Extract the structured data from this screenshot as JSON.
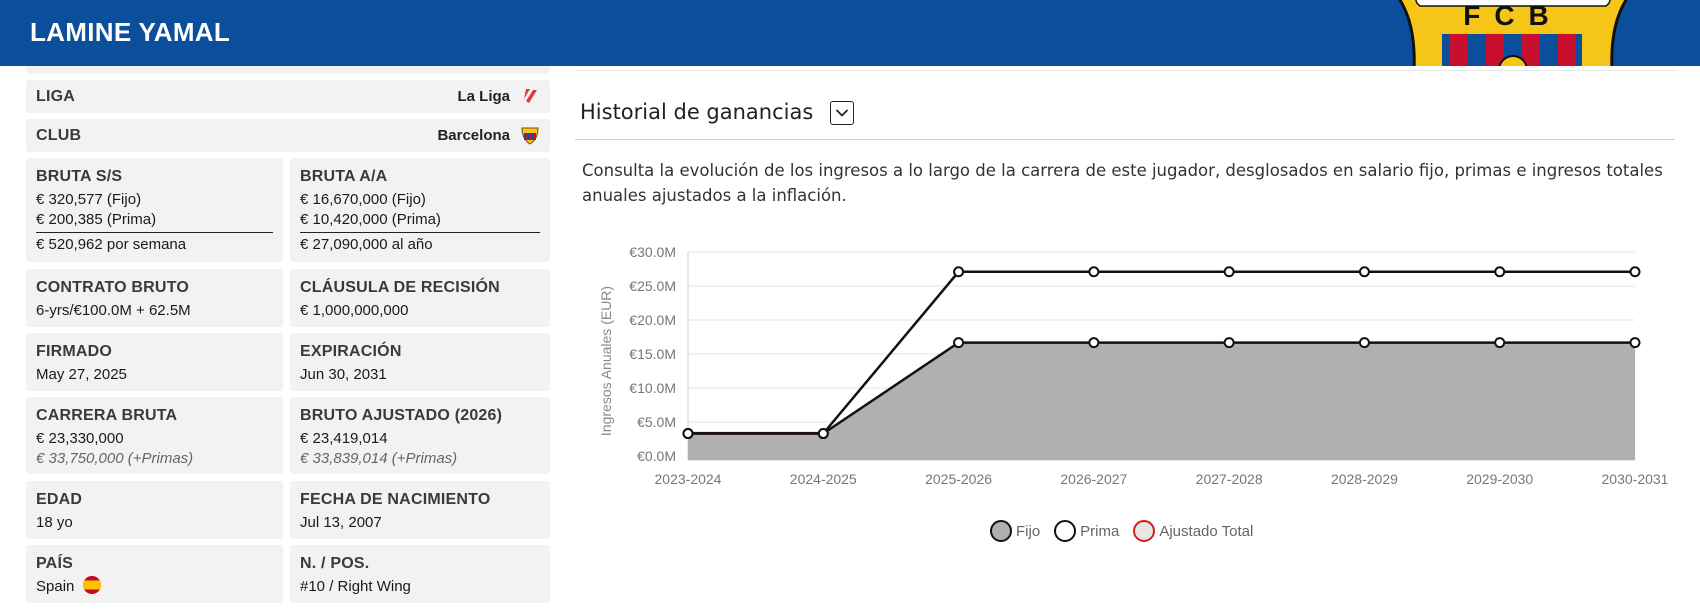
{
  "header": {
    "player_name": "LAMINE YAMAL",
    "crest_text": "FCB",
    "colors": {
      "header_bg": "#0b4f9c",
      "crest_gold": "#f5c518",
      "crest_red": "#c8102e",
      "crest_blue": "#0b4f9c"
    }
  },
  "stats": {
    "liga": {
      "label": "LIGA",
      "value": "La Liga",
      "icon": "laliga-logo-icon"
    },
    "club": {
      "label": "CLUB",
      "value": "Barcelona",
      "icon": "fcb-crest-icon"
    },
    "bruta_ss": {
      "label": "BRUTA S/S",
      "fijo": "€ 320,577 (Fijo)",
      "prima": "€ 200,385 (Prima)",
      "total": "€ 520,962 por semana"
    },
    "bruta_aa": {
      "label": "BRUTA A/A",
      "fijo": "€ 16,670,000 (Fijo)",
      "prima": "€ 10,420,000 (Prima)",
      "total": "€ 27,090,000 al año"
    },
    "contrato": {
      "label": "CONTRATO BRUTO",
      "value": "6-yrs/€100.0M + 62.5M"
    },
    "clausula": {
      "label": "CLÁUSULA DE RECISIÓN",
      "value": "€ 1,000,000,000"
    },
    "firmado": {
      "label": "FIRMADO",
      "value": "May 27, 2025"
    },
    "expiracion": {
      "label": "EXPIRACIÓN",
      "value": "Jun 30, 2031"
    },
    "carrera": {
      "label": "CARRERA BRUTA",
      "value": "€ 23,330,000",
      "sub": "€ 33,750,000 (+Primas)"
    },
    "ajustado": {
      "label": "BRUTO AJUSTADO (2026)",
      "value": "€ 23,419,014",
      "sub": "€ 33,839,014 (+Primas)"
    },
    "edad": {
      "label": "EDAD",
      "value": "18 yo"
    },
    "nacimiento": {
      "label": "FECHA DE NACIMIENTO",
      "value": "Jul 13, 2007"
    },
    "pais": {
      "label": "PAÍS",
      "value": "Spain",
      "icon": "spain-flag-icon"
    },
    "posicion": {
      "label": "N. / POS.",
      "value": "#10 / Right Wing"
    }
  },
  "section": {
    "title": "Historial de ganancias",
    "dropdown_icon": "chevron-down-icon",
    "description": "Consulta la evolución de los ingresos a lo largo de la carrera de este jugador, desglosados en salario fijo, primas e ingresos totales anuales ajustados a la inflación."
  },
  "chart_data": {
    "type": "area",
    "ylabel": "Ingresos Anuales (EUR)",
    "categories": [
      "2023-2024",
      "2024-2025",
      "2025-2026",
      "2026-2027",
      "2027-2028",
      "2028-2029",
      "2029-2030",
      "2030-2031"
    ],
    "ylim": [
      0,
      30
    ],
    "yticks": [
      0,
      5,
      10,
      15,
      20,
      25,
      30
    ],
    "ytick_labels": [
      "€0.0M",
      "€5.0M",
      "€10.0M",
      "€15.0M",
      "€20.0M",
      "€25.0M",
      "€30.0M"
    ],
    "grid": true,
    "legend_position": "bottom",
    "series": [
      {
        "name": "Fijo",
        "values": [
          3.3,
          3.3,
          16.67,
          16.67,
          16.67,
          16.67,
          16.67,
          16.67
        ],
        "fill": "#b0b0b0",
        "stroke": "#111111"
      },
      {
        "name": "Prima",
        "values": [
          3.3,
          3.3,
          27.09,
          27.09,
          27.09,
          27.09,
          27.09,
          27.09
        ],
        "fill": "#ffffff",
        "stroke": "#111111"
      },
      {
        "name": "Ajustado Total",
        "values": [
          3.4,
          3.4,
          null,
          null,
          null,
          null,
          null,
          null
        ],
        "fill": "#e6e6e6",
        "stroke": "#d02020"
      }
    ]
  }
}
